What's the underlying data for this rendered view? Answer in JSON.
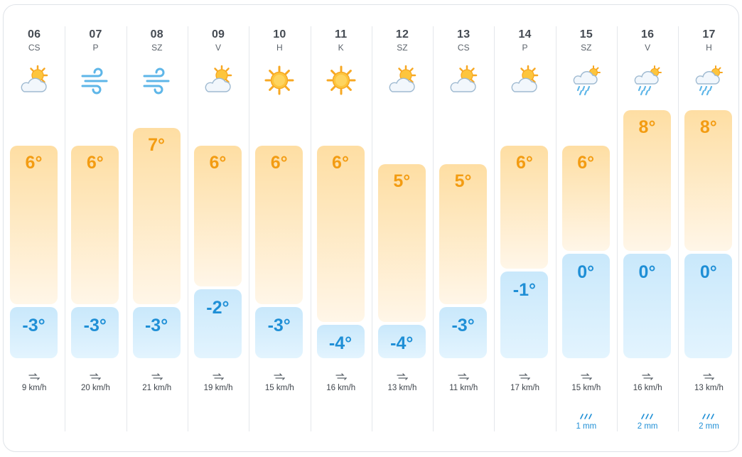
{
  "units": {
    "temp": "°",
    "wind": "km/h",
    "precip": "mm"
  },
  "scale": {
    "temp_max": 8,
    "temp_min": -4
  },
  "days": [
    {
      "date": "06",
      "dow": "CS",
      "icon": "partly-cloudy-icon",
      "max": 6,
      "min": -3,
      "wind": 9,
      "precip": null
    },
    {
      "date": "07",
      "dow": "P",
      "icon": "wind-icon",
      "max": 6,
      "min": -3,
      "wind": 20,
      "precip": null
    },
    {
      "date": "08",
      "dow": "SZ",
      "icon": "wind-icon",
      "max": 7,
      "min": -3,
      "wind": 21,
      "precip": null
    },
    {
      "date": "09",
      "dow": "V",
      "icon": "partly-cloudy-icon",
      "max": 6,
      "min": -2,
      "wind": 19,
      "precip": null
    },
    {
      "date": "10",
      "dow": "H",
      "icon": "sun-icon",
      "max": 6,
      "min": -3,
      "wind": 15,
      "precip": null
    },
    {
      "date": "11",
      "dow": "K",
      "icon": "sun-icon",
      "max": 6,
      "min": -4,
      "wind": 16,
      "precip": null
    },
    {
      "date": "12",
      "dow": "SZ",
      "icon": "partly-cloudy-icon",
      "max": 5,
      "min": -4,
      "wind": 13,
      "precip": null
    },
    {
      "date": "13",
      "dow": "CS",
      "icon": "partly-cloudy-icon",
      "max": 5,
      "min": -3,
      "wind": 11,
      "precip": null
    },
    {
      "date": "14",
      "dow": "P",
      "icon": "partly-cloudy-icon",
      "max": 6,
      "min": -1,
      "wind": 17,
      "precip": null
    },
    {
      "date": "15",
      "dow": "SZ",
      "icon": "rain-cloud-icon",
      "max": 6,
      "min": 0,
      "wind": 15,
      "precip": 1
    },
    {
      "date": "16",
      "dow": "V",
      "icon": "rain-cloud-icon",
      "max": 8,
      "min": 0,
      "wind": 16,
      "precip": 2
    },
    {
      "date": "17",
      "dow": "H",
      "icon": "rain-cloud-icon",
      "max": 8,
      "min": 0,
      "wind": 13,
      "precip": 2
    }
  ],
  "colors": {
    "max_text": "#f39c12",
    "min_text": "#1f8fd6",
    "max_bar": "#fedea3",
    "min_bar": "#c9e8fb"
  }
}
